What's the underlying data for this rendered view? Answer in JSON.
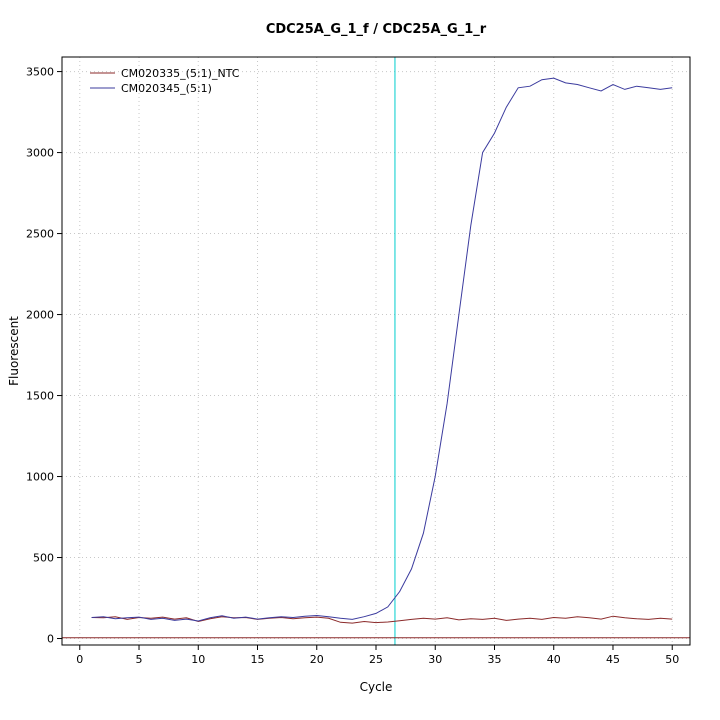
{
  "chart_data": {
    "type": "line",
    "title": "CDC25A_G_1_f / CDC25A_G_1_r",
    "xlabel": "Cycle",
    "ylabel": "Fluorescent",
    "xlim": [
      -1.5,
      51.5
    ],
    "ylim": [
      -40,
      3590
    ],
    "xticks": [
      0,
      5,
      10,
      15,
      20,
      25,
      30,
      35,
      40,
      45,
      50
    ],
    "yticks": [
      0,
      500,
      1000,
      1500,
      2000,
      2500,
      3000,
      3500
    ],
    "grid": true,
    "grid_color": "#c8c8c8",
    "legend_position": "top-left",
    "x": [
      1,
      2,
      3,
      4,
      5,
      6,
      7,
      8,
      9,
      10,
      11,
      12,
      13,
      14,
      15,
      16,
      17,
      18,
      19,
      20,
      21,
      22,
      23,
      24,
      25,
      26,
      27,
      28,
      29,
      30,
      31,
      32,
      33,
      34,
      35,
      36,
      37,
      38,
      39,
      40,
      41,
      42,
      43,
      44,
      45,
      46,
      47,
      48,
      49,
      50
    ],
    "series": [
      {
        "name": "CM020335_(5:1)_NTC",
        "color": "#8b2a2a",
        "values": [
          130,
          128,
          135,
          118,
          130,
          125,
          132,
          120,
          128,
          105,
          122,
          135,
          128,
          130,
          118,
          125,
          130,
          122,
          128,
          132,
          125,
          100,
          95,
          105,
          98,
          102,
          110,
          118,
          125,
          120,
          128,
          115,
          122,
          118,
          125,
          112,
          120,
          125,
          118,
          130,
          125,
          135,
          128,
          120,
          138,
          128,
          122,
          118,
          125,
          120
        ]
      },
      {
        "name": "CM020345_(5:1)",
        "color": "#3b3b9e",
        "values": [
          130,
          135,
          122,
          128,
          132,
          118,
          125,
          112,
          120,
          108,
          128,
          140,
          125,
          132,
          120,
          128,
          135,
          130,
          138,
          142,
          135,
          125,
          118,
          135,
          155,
          195,
          290,
          430,
          650,
          1000,
          1450,
          2000,
          2550,
          3000,
          3120,
          3280,
          3400,
          3410,
          3450,
          3460,
          3430,
          3420,
          3400,
          3380,
          3420,
          3390,
          3410,
          3400,
          3390,
          3400
        ]
      }
    ],
    "ct_line": {
      "x": 26.6,
      "color": "#00cdcd"
    },
    "threshold_line": {
      "y": 5,
      "color": "#8b2a2a"
    }
  }
}
